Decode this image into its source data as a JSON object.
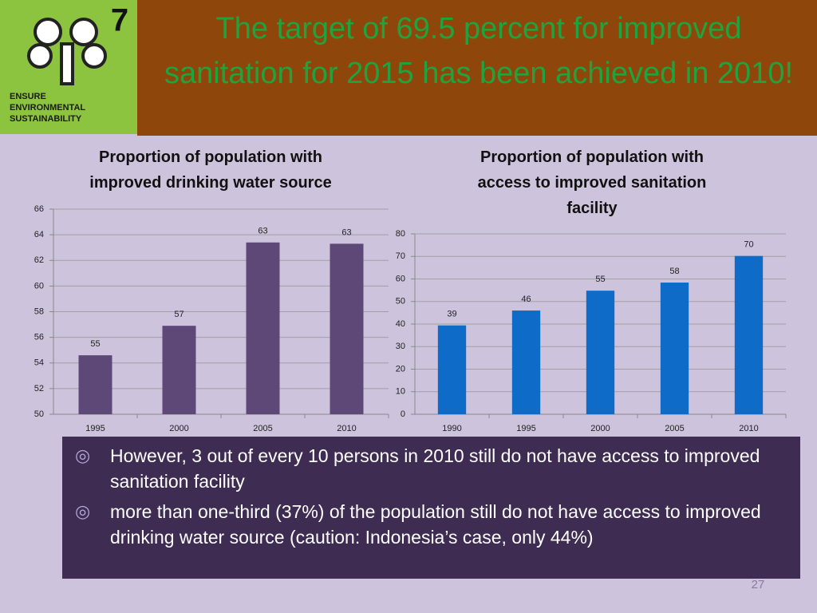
{
  "slide": {
    "title": "The target  of 69.5 percent for improved sanitation for 2015 has been achieved in 2010!",
    "logo_number": "7",
    "logo_text": [
      "ENSURE",
      "ENVIRONMENTAL",
      "SUSTAINABILITY"
    ],
    "bullets": [
      "However, 3 out of every 10 persons in 2010 still do not have access to improved sanitation  facility",
      "more than one-third (37%) of the population still do not have access to improved drinking water source (caution: Indonesia’s case, only 44%)"
    ],
    "page_number": "27"
  },
  "chart_data": [
    {
      "type": "bar",
      "title": "Proportion of population with improved drinking water source",
      "categories": [
        "1995",
        "2000",
        "2005",
        "2010"
      ],
      "values": [
        54.6,
        56.9,
        63.4,
        63.3
      ],
      "value_labels": [
        "55",
        "57",
        "63",
        "63"
      ],
      "color": "#5e4878",
      "ylim": [
        50,
        66
      ],
      "yticks": [
        50,
        52,
        54,
        56,
        58,
        60,
        62,
        64,
        66
      ],
      "grid": true
    },
    {
      "type": "bar",
      "title": "Proportion of population with access to improved sanitation facility",
      "categories": [
        "1990",
        "1995",
        "2000",
        "2005",
        "2010"
      ],
      "values": [
        39.4,
        46,
        54.8,
        58.4,
        70.2
      ],
      "value_labels": [
        "39",
        "46",
        "55",
        "58",
        "70"
      ],
      "color": "#0f6bc8",
      "ylim": [
        0,
        80
      ],
      "yticks": [
        0,
        10,
        20,
        30,
        40,
        50,
        60,
        70,
        80
      ],
      "grid": true
    }
  ]
}
